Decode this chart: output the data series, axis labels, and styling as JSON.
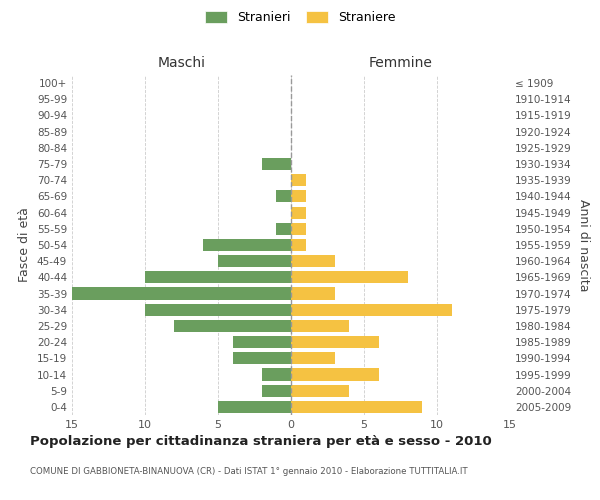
{
  "age_groups": [
    "100+",
    "95-99",
    "90-94",
    "85-89",
    "80-84",
    "75-79",
    "70-74",
    "65-69",
    "60-64",
    "55-59",
    "50-54",
    "45-49",
    "40-44",
    "35-39",
    "30-34",
    "25-29",
    "20-24",
    "15-19",
    "10-14",
    "5-9",
    "0-4"
  ],
  "birth_years": [
    "≤ 1909",
    "1910-1914",
    "1915-1919",
    "1920-1924",
    "1925-1929",
    "1930-1934",
    "1935-1939",
    "1940-1944",
    "1945-1949",
    "1950-1954",
    "1955-1959",
    "1960-1964",
    "1965-1969",
    "1970-1974",
    "1975-1979",
    "1980-1984",
    "1985-1989",
    "1990-1994",
    "1995-1999",
    "2000-2004",
    "2005-2009"
  ],
  "males": [
    0,
    0,
    0,
    0,
    0,
    2,
    0,
    1,
    0,
    1,
    6,
    5,
    10,
    15,
    10,
    8,
    4,
    4,
    2,
    2,
    5
  ],
  "females": [
    0,
    0,
    0,
    0,
    0,
    0,
    1,
    1,
    1,
    1,
    1,
    3,
    8,
    3,
    11,
    4,
    6,
    3,
    6,
    4,
    9
  ],
  "male_color": "#6a9e5e",
  "female_color": "#f5c242",
  "title": "Popolazione per cittadinanza straniera per età e sesso - 2010",
  "subtitle": "COMUNE DI GABBIONETA-BINANUOVA (CR) - Dati ISTAT 1° gennaio 2010 - Elaborazione TUTTITALIA.IT",
  "xlabel_left": "Maschi",
  "xlabel_right": "Femmine",
  "ylabel_left": "Fasce di età",
  "ylabel_right": "Anni di nascita",
  "legend_male": "Stranieri",
  "legend_female": "Straniere",
  "xlim": 15,
  "background_color": "#ffffff",
  "grid_color": "#cccccc"
}
